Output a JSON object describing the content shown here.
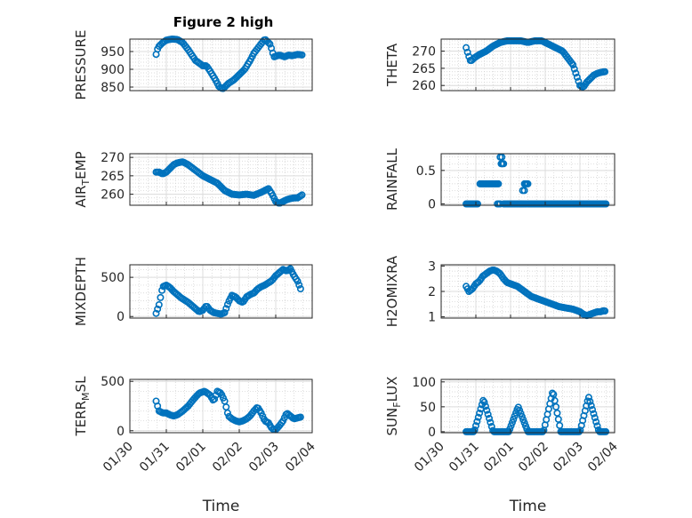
{
  "figure_title": "Figure 2 high",
  "chart_data": [
    {
      "id": "pressure",
      "type": "scatter",
      "ylabel": "PRESSURE",
      "xlim": [
        0,
        5
      ],
      "ylim": [
        840,
        985
      ],
      "yticks": [
        850,
        900,
        950
      ],
      "xticks": [],
      "xticklabels": [],
      "xlabel": "",
      "grid": "on",
      "minor_grid": "on",
      "color": "#0072BD",
      "marker": "circle",
      "title": "Figure 2 high",
      "key_x": [
        0.72,
        0.75,
        0.8,
        0.9,
        1.0,
        1.15,
        1.3,
        1.45,
        1.6,
        1.8,
        2.0,
        2.1,
        2.2,
        2.35,
        2.45,
        2.55,
        2.7,
        2.85,
        3.0,
        3.15,
        3.3,
        3.4,
        3.55,
        3.7,
        3.85,
        3.95,
        4.1,
        4.25,
        4.35,
        4.45,
        4.6,
        4.75
      ],
      "key_y": [
        942,
        955,
        965,
        975,
        982,
        985,
        984,
        975,
        955,
        925,
        910,
        910,
        895,
        870,
        850,
        845,
        860,
        870,
        885,
        900,
        925,
        945,
        965,
        985,
        970,
        935,
        940,
        935,
        940,
        938,
        942,
        940
      ]
    },
    {
      "id": "theta",
      "type": "scatter",
      "ylabel": "THETA",
      "xlim": [
        0,
        5
      ],
      "ylim": [
        258.5,
        273.5
      ],
      "yticks": [
        260,
        265,
        270
      ],
      "xticks": [],
      "xticklabels": [],
      "xlabel": "",
      "grid": "on",
      "minor_grid": "on",
      "color": "#0072BD",
      "marker": "circle",
      "key_x": [
        0.72,
        0.78,
        0.85,
        0.95,
        1.1,
        1.3,
        1.5,
        1.7,
        1.9,
        2.1,
        2.3,
        2.5,
        2.7,
        2.9,
        3.1,
        3.3,
        3.5,
        3.65,
        3.8,
        3.9,
        4.0,
        4.1,
        4.2,
        4.3,
        4.4,
        4.5,
        4.6,
        4.7,
        4.75
      ],
      "key_y": [
        271,
        269,
        267,
        268,
        269,
        270,
        271.5,
        272.5,
        273,
        273,
        273,
        272.5,
        273,
        273,
        272,
        271,
        270,
        268,
        266,
        263,
        260,
        259.5,
        261,
        262,
        263,
        263.5,
        263.8,
        264,
        264
      ]
    },
    {
      "id": "air_temp",
      "type": "scatter",
      "ylabel": "AIR_TEMP",
      "xlim": [
        0,
        5
      ],
      "ylim": [
        257,
        271
      ],
      "yticks": [
        260,
        265,
        270
      ],
      "xticks": [],
      "xticklabels": [],
      "xlabel": "",
      "grid": "on",
      "minor_grid": "on",
      "color": "#0072BD",
      "marker": "circle",
      "key_x": [
        0.72,
        0.8,
        0.9,
        1.0,
        1.1,
        1.2,
        1.3,
        1.45,
        1.6,
        1.8,
        2.0,
        2.2,
        2.4,
        2.6,
        2.8,
        3.0,
        3.2,
        3.4,
        3.6,
        3.7,
        3.8,
        3.9,
        4.0,
        4.1,
        4.2,
        4.3,
        4.4,
        4.5,
        4.6,
        4.75
      ],
      "key_y": [
        266,
        266,
        265.5,
        266,
        267,
        268,
        268.5,
        268.8,
        268,
        266.5,
        265,
        264,
        263,
        261,
        260,
        259.8,
        260,
        259.7,
        260.5,
        261,
        261.5,
        260,
        258,
        257.5,
        258,
        258.5,
        258.8,
        259,
        259,
        260
      ]
    },
    {
      "id": "rainfall",
      "type": "scatter",
      "ylabel": "RAINFALL",
      "xlim": [
        0,
        5
      ],
      "ylim": [
        -0.02,
        0.75
      ],
      "yticks": [
        0,
        0.5
      ],
      "xticks": [],
      "xticklabels": [],
      "xlabel": "",
      "grid": "on",
      "minor_grid": "on",
      "color": "#0072BD",
      "marker": "circle",
      "segments": [
        [
          0.72,
          1.05,
          0
        ],
        [
          1.12,
          1.65,
          0.3
        ],
        [
          1.62,
          1.7,
          0.0
        ],
        [
          1.7,
          1.75,
          0.7
        ],
        [
          1.73,
          1.8,
          0.6
        ],
        [
          1.8,
          2.3,
          0
        ],
        [
          2.35,
          2.4,
          0.2
        ],
        [
          2.4,
          2.5,
          0.3
        ],
        [
          2.3,
          2.45,
          0
        ],
        [
          2.5,
          4.75,
          0
        ]
      ]
    },
    {
      "id": "mixdepth",
      "type": "scatter",
      "ylabel": "MIXDEPTH",
      "xlim": [
        0,
        5
      ],
      "ylim": [
        -20,
        660
      ],
      "yticks": [
        0,
        500
      ],
      "xticks": [],
      "xticklabels": [],
      "xlabel": "",
      "grid": "on",
      "minor_grid": "on",
      "color": "#0072BD",
      "marker": "circle",
      "key_x": [
        0.72,
        0.8,
        0.9,
        1.0,
        1.1,
        1.2,
        1.3,
        1.4,
        1.5,
        1.6,
        1.7,
        1.8,
        1.9,
        2.0,
        2.1,
        2.2,
        2.3,
        2.4,
        2.5,
        2.6,
        2.7,
        2.8,
        2.9,
        3.0,
        3.1,
        3.2,
        3.3,
        3.4,
        3.5,
        3.6,
        3.7,
        3.8,
        3.9,
        4.0,
        4.1,
        4.2,
        4.3,
        4.4,
        4.5,
        4.6,
        4.7
      ],
      "key_y": [
        40,
        150,
        380,
        400,
        370,
        320,
        280,
        240,
        210,
        180,
        140,
        100,
        60,
        80,
        140,
        80,
        50,
        40,
        30,
        50,
        180,
        270,
        250,
        200,
        180,
        250,
        280,
        300,
        350,
        380,
        400,
        430,
        460,
        520,
        560,
        600,
        580,
        610,
        520,
        450,
        330
      ]
    },
    {
      "id": "h2omixra",
      "type": "scatter",
      "ylabel": "H2OMIXRA",
      "xlim": [
        0,
        5
      ],
      "ylim": [
        0.95,
        3.05
      ],
      "yticks": [
        1,
        2,
        3
      ],
      "xticks": [],
      "xticklabels": [],
      "xlabel": "",
      "grid": "on",
      "minor_grid": "on",
      "color": "#0072BD",
      "marker": "circle",
      "key_x": [
        0.72,
        0.8,
        0.9,
        1.0,
        1.1,
        1.2,
        1.3,
        1.4,
        1.5,
        1.6,
        1.7,
        1.8,
        1.9,
        2.0,
        2.2,
        2.4,
        2.6,
        2.8,
        3.0,
        3.2,
        3.4,
        3.6,
        3.8,
        4.0,
        4.1,
        4.2,
        4.3,
        4.4,
        4.5,
        4.6,
        4.7,
        4.75
      ],
      "key_y": [
        2.2,
        2.0,
        2.1,
        2.3,
        2.4,
        2.6,
        2.7,
        2.8,
        2.85,
        2.8,
        2.7,
        2.5,
        2.35,
        2.3,
        2.2,
        2.0,
        1.8,
        1.7,
        1.6,
        1.5,
        1.4,
        1.35,
        1.3,
        1.2,
        1.1,
        1.05,
        1.1,
        1.15,
        1.2,
        1.2,
        1.25,
        1.2
      ]
    },
    {
      "id": "terr_msl",
      "type": "scatter",
      "ylabel": "TERR_MSL",
      "xlim": [
        0,
        5
      ],
      "ylim": [
        -20,
        520
      ],
      "yticks": [
        0,
        500
      ],
      "xticks": [
        0,
        1,
        2,
        3,
        4,
        5
      ],
      "xticklabels": [
        "01/30",
        "01/31",
        "02/01",
        "02/02",
        "02/03",
        "02/04"
      ],
      "xlabel": "Time",
      "grid": "on",
      "minor_grid": "on",
      "color": "#0072BD",
      "marker": "circle",
      "key_x": [
        0.72,
        0.8,
        0.9,
        1.0,
        1.1,
        1.2,
        1.3,
        1.45,
        1.6,
        1.75,
        1.9,
        2.05,
        2.2,
        2.3,
        2.4,
        2.5,
        2.6,
        2.7,
        2.8,
        2.9,
        3.0,
        3.1,
        3.2,
        3.3,
        3.4,
        3.5,
        3.6,
        3.7,
        3.8,
        3.9,
        4.0,
        4.1,
        4.2,
        4.3,
        4.4,
        4.5,
        4.6,
        4.7
      ],
      "key_y": [
        300,
        200,
        180,
        180,
        160,
        150,
        160,
        200,
        250,
        320,
        380,
        400,
        360,
        300,
        400,
        380,
        300,
        150,
        120,
        100,
        90,
        100,
        120,
        150,
        200,
        240,
        180,
        100,
        80,
        20,
        10,
        50,
        100,
        180,
        150,
        120,
        130,
        140
      ]
    },
    {
      "id": "sun_flux",
      "type": "scatter",
      "ylabel": "SUN_FLUX",
      "xlim": [
        0,
        5
      ],
      "ylim": [
        -2,
        105
      ],
      "yticks": [
        0,
        50,
        100
      ],
      "xticks": [
        0,
        1,
        2,
        3,
        4,
        5
      ],
      "xticklabels": [
        "01/30",
        "01/31",
        "02/01",
        "02/02",
        "02/03",
        "02/04"
      ],
      "xlabel": "Time",
      "grid": "on",
      "minor_grid": "on",
      "color": "#0072BD",
      "marker": "circle",
      "peaks": [
        [
          1.22,
          0.95,
          1.5,
          65
        ],
        [
          2.22,
          1.95,
          2.5,
          50
        ],
        [
          3.22,
          2.95,
          3.45,
          82
        ],
        [
          4.25,
          4.0,
          4.55,
          70
        ]
      ],
      "zero_range": [
        0.72,
        4.75
      ]
    }
  ]
}
